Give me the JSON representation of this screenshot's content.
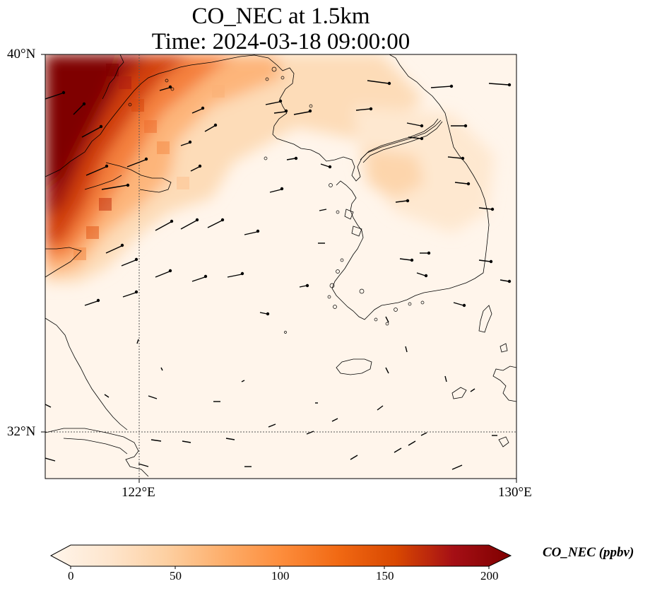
{
  "title": "CO_NEC at 1.5km",
  "subtitle": "Time: 2024-03-18 09:00:00",
  "axes": {
    "lat_labels": [
      "40°N",
      "32°N"
    ],
    "lon_labels": [
      "122°E",
      "130°E"
    ]
  },
  "colorbar": {
    "label": "CO_NEC (ppbv)",
    "ticks": [
      "0",
      "50",
      "100",
      "150",
      "200"
    ],
    "min": 0,
    "max": 200,
    "colors": [
      "#fff5eb",
      "#fee6ce",
      "#fdd0a2",
      "#fdae6b",
      "#fd8d3c",
      "#f16913",
      "#d94801",
      "#a50f15",
      "#7f0000"
    ]
  },
  "colors": {
    "coast": "#000000",
    "grid": "#555555",
    "arrow": "#000000"
  }
}
